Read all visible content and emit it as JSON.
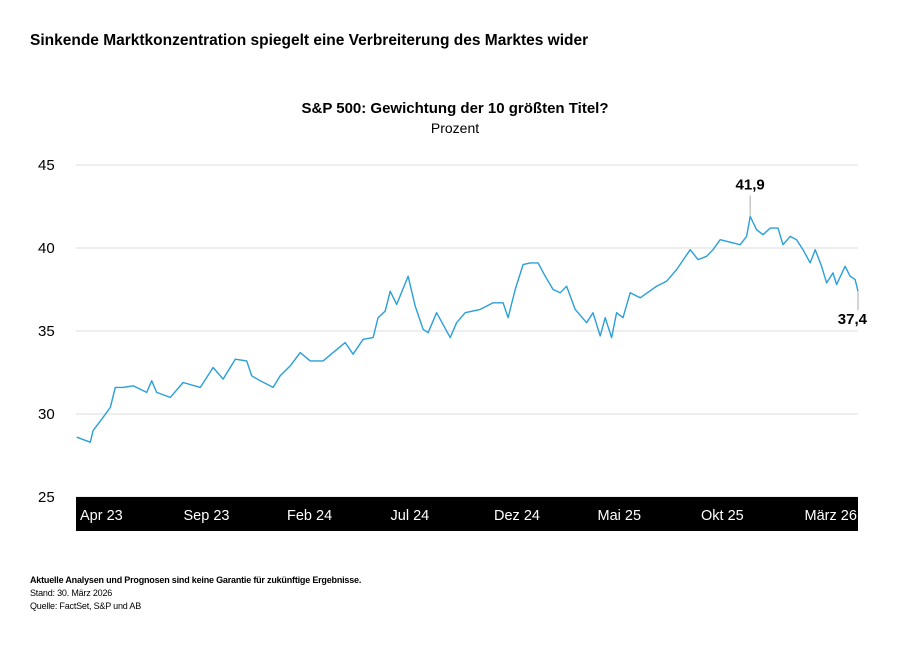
{
  "headline": "Sinkende Marktkonzentration spiegelt eine Verbreiterung des Marktes wider",
  "footer": {
    "disclaimer": "Aktuelle Analysen und Prognosen sind keine Garantie für zukünftige Ergebnisse.",
    "date": "Stand: 30. März 2026",
    "source": "Quelle: FactSet, S&P und AB"
  },
  "chart_data": {
    "type": "line",
    "title": "S&P 500: Gewichtung der 10 größten Titel?",
    "subtitle": "Prozent",
    "xlabel": "",
    "ylabel": "",
    "ylim": [
      25,
      45
    ],
    "yticks": [
      "45",
      "40",
      "35",
      "30",
      "25"
    ],
    "ytick_values": [
      45,
      40,
      35,
      30,
      25
    ],
    "xlim": [
      "2023-03-31",
      "2026-03-30"
    ],
    "xticks": [
      "Apr 23",
      "Sep 23",
      "Feb 24",
      "Jul 24",
      "Dez 24",
      "Mai 25",
      "Okt 25",
      "März  26"
    ],
    "grid": true,
    "line_color": "#2a9fd8",
    "annotations": [
      {
        "label": "41,9",
        "x": "2025-10-30",
        "y": 41.9
      },
      {
        "label": "37,4",
        "x": "2026-03-30",
        "y": 37.4
      }
    ],
    "series": [
      {
        "x": [
          "2023-04-01",
          "2023-04-20",
          "2023-04-24",
          "2023-05-08",
          "2023-05-18",
          "2023-05-25",
          "2023-06-05",
          "2023-06-19",
          "2023-07-08",
          "2023-07-15",
          "2023-07-22",
          "2023-08-10",
          "2023-08-28",
          "2023-09-21",
          "2023-10-09",
          "2023-10-23",
          "2023-11-09",
          "2023-11-25",
          "2023-12-02",
          "2023-12-14",
          "2024-01-01",
          "2024-01-11",
          "2024-01-25",
          "2024-02-08",
          "2024-02-22",
          "2024-03-11",
          "2024-03-25",
          "2024-04-11",
          "2024-04-22",
          "2024-05-06",
          "2024-05-20",
          "2024-05-27",
          "2024-06-06",
          "2024-06-13",
          "2024-06-22",
          "2024-07-08",
          "2024-07-18",
          "2024-07-29",
          "2024-08-05",
          "2024-08-17",
          "2024-09-05",
          "2024-09-14",
          "2024-09-26",
          "2024-10-17",
          "2024-11-04",
          "2024-11-18",
          "2024-11-25",
          "2024-12-05",
          "2024-12-16",
          "2024-12-26",
          "2025-01-06",
          "2025-01-16",
          "2025-01-27",
          "2025-02-06",
          "2025-02-15",
          "2025-02-27",
          "2025-03-15",
          "2025-03-24",
          "2025-04-03",
          "2025-04-10",
          "2025-04-19",
          "2025-04-26",
          "2025-05-05",
          "2025-05-15",
          "2025-05-29",
          "2025-06-21",
          "2025-07-05",
          "2025-07-19",
          "2025-08-07",
          "2025-08-18",
          "2025-08-30",
          "2025-09-08",
          "2025-09-18",
          "2025-10-16",
          "2025-10-25",
          "2025-10-30",
          "2025-11-08",
          "2025-11-17",
          "2025-11-27",
          "2025-12-08",
          "2025-12-15",
          "2025-12-25",
          "2026-01-03",
          "2026-01-12",
          "2026-01-22",
          "2026-01-29",
          "2026-02-07",
          "2026-02-14",
          "2026-02-23",
          "2026-02-28",
          "2026-03-12",
          "2026-03-19",
          "2026-03-26",
          "2026-03-30"
        ],
        "values": [
          28.6,
          28.3,
          29.0,
          29.8,
          30.4,
          31.6,
          31.6,
          31.7,
          31.3,
          32.0,
          31.3,
          31.0,
          31.9,
          31.6,
          32.8,
          32.1,
          33.3,
          33.2,
          32.3,
          32.0,
          31.6,
          32.3,
          32.9,
          33.7,
          33.2,
          33.2,
          33.7,
          34.3,
          33.6,
          34.5,
          34.6,
          35.8,
          36.2,
          37.4,
          36.6,
          38.3,
          36.5,
          35.1,
          34.9,
          36.1,
          34.6,
          35.5,
          36.1,
          36.3,
          36.7,
          36.7,
          35.8,
          37.5,
          39.0,
          39.1,
          39.1,
          38.3,
          37.5,
          37.3,
          37.7,
          36.3,
          35.5,
          36.1,
          34.7,
          35.8,
          34.6,
          36.1,
          35.8,
          37.3,
          37.0,
          37.7,
          38.0,
          38.7,
          39.9,
          39.3,
          39.5,
          39.9,
          40.5,
          40.2,
          40.7,
          41.9,
          41.1,
          40.8,
          41.2,
          41.2,
          40.2,
          40.7,
          40.5,
          39.9,
          39.1,
          39.9,
          38.9,
          37.9,
          38.5,
          37.8,
          38.9,
          38.3,
          38.1,
          37.4
        ]
      }
    ]
  }
}
